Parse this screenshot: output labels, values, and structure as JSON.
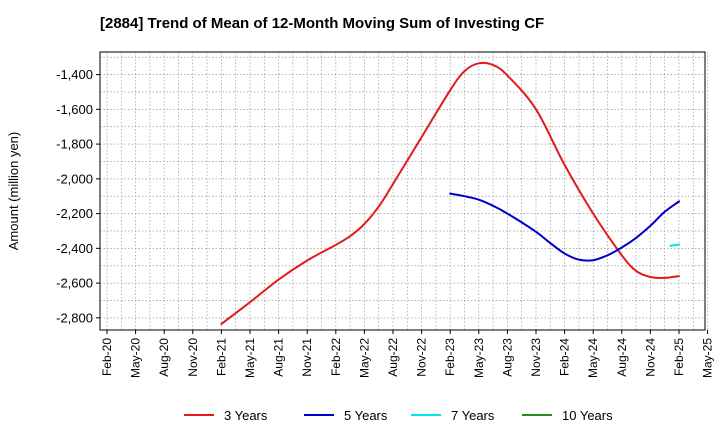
{
  "chart_data": {
    "type": "line",
    "title": "[2884]  Trend of Mean of 12-Month Moving Sum of Investing CF",
    "xlabel": "",
    "ylabel": "Amount (million yen)",
    "ylim": [
      -2870,
      -1270
    ],
    "yticks": [
      -2800,
      -2600,
      -2400,
      -2200,
      -2000,
      -1800,
      -1600,
      -1400
    ],
    "ytick_labels": [
      "-2,800",
      "-2,600",
      "-2,400",
      "-2,200",
      "-2,000",
      "-1,800",
      "-1,600",
      "-1,400"
    ],
    "categories": [
      "Feb-20",
      "May-20",
      "Aug-20",
      "Nov-20",
      "Feb-21",
      "May-21",
      "Aug-21",
      "Nov-21",
      "Feb-22",
      "May-22",
      "Aug-22",
      "Nov-22",
      "Feb-23",
      "May-23",
      "Aug-23",
      "Nov-23",
      "Feb-24",
      "May-24",
      "Aug-24",
      "Nov-24",
      "Feb-25",
      "May-25"
    ],
    "grid": true,
    "legend_position": "bottom",
    "series": [
      {
        "name": "3 Years",
        "color": "#e31a1c",
        "points": [
          [
            4,
            -2835
          ],
          [
            5,
            -2710
          ],
          [
            6,
            -2580
          ],
          [
            7,
            -2470
          ],
          [
            8,
            -2380
          ],
          [
            8.5,
            -2330
          ],
          [
            9,
            -2260
          ],
          [
            9.5,
            -2160
          ],
          [
            10,
            -2030
          ],
          [
            11,
            -1760
          ],
          [
            12,
            -1490
          ],
          [
            12.5,
            -1380
          ],
          [
            13,
            -1335
          ],
          [
            13.5,
            -1345
          ],
          [
            14,
            -1405
          ],
          [
            15,
            -1600
          ],
          [
            16,
            -1920
          ],
          [
            17,
            -2200
          ],
          [
            18,
            -2440
          ],
          [
            18.5,
            -2530
          ],
          [
            19,
            -2565
          ],
          [
            19.5,
            -2570
          ],
          [
            20,
            -2560
          ]
        ]
      },
      {
        "name": "5 Years",
        "color": "#0000cc",
        "points": [
          [
            12,
            -2085
          ],
          [
            12.5,
            -2100
          ],
          [
            13,
            -2120
          ],
          [
            13.5,
            -2155
          ],
          [
            14,
            -2200
          ],
          [
            15,
            -2305
          ],
          [
            15.5,
            -2370
          ],
          [
            16,
            -2430
          ],
          [
            16.5,
            -2465
          ],
          [
            17,
            -2468
          ],
          [
            17.5,
            -2440
          ],
          [
            18,
            -2395
          ],
          [
            18.5,
            -2340
          ],
          [
            19,
            -2270
          ],
          [
            19.5,
            -2190
          ],
          [
            20,
            -2130
          ]
        ]
      },
      {
        "name": "7 Years",
        "color": "#00e5e5",
        "points": [
          [
            19.7,
            -2385
          ],
          [
            20,
            -2378
          ]
        ]
      },
      {
        "name": "10 Years",
        "color": "#228b22",
        "points": []
      }
    ]
  }
}
